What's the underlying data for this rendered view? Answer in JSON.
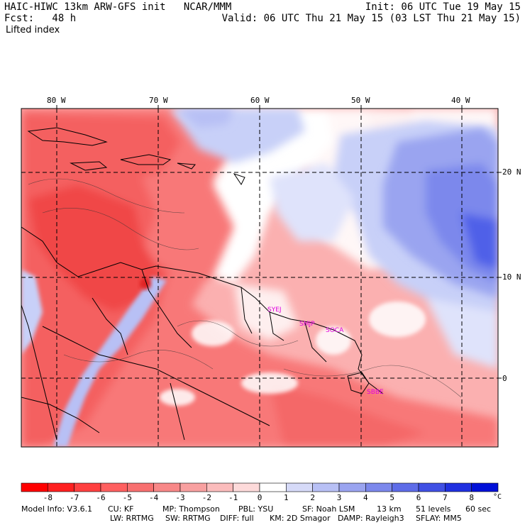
{
  "header": {
    "model_line": "HAIC-HIWC 13km ARW-GFS init   NCAR/MMM",
    "init_line": "Init: 06 UTC Tue 19 May 15",
    "fcst_line": "Fcst:   48 h",
    "valid_line": "Valid: 06 UTC Thu 21 May 15 (03 LST Thu 21 May 15)",
    "field_name": "Lifted index"
  },
  "map": {
    "lon_labels": [
      "80 W",
      "70 W",
      "60 W",
      "50 W",
      "40 W"
    ],
    "lat_labels": [
      "20 N",
      "10 N",
      "0"
    ],
    "stations": [
      "SYEJ",
      "SMJP",
      "SOCA",
      "SBBE"
    ],
    "colors": {
      "strong_negative": "#f04646",
      "negative": "#f87878",
      "weak_negative": "#fbb0b0",
      "neutral": "#ffffff",
      "weak_positive": "#c8d0f8",
      "positive": "#8c96f0",
      "strong_positive": "#5060e8",
      "station_label": "#e000e0"
    }
  },
  "colorbar": {
    "labels": [
      "-8",
      "-7",
      "-6",
      "-5",
      "-4",
      "-3",
      "-2",
      "-1",
      "0",
      "1",
      "2",
      "3",
      "4",
      "5",
      "6",
      "7",
      "8"
    ],
    "unit": "°C",
    "colors": [
      "#ff0000",
      "#ff2020",
      "#ff4040",
      "#ff6060",
      "#f87070",
      "#f88888",
      "#f8a0a0",
      "#fbbcbc",
      "#fddada",
      "#ffffff",
      "#d6daf8",
      "#b8c0f5",
      "#9aa4f0",
      "#7c88ec",
      "#5e6ce8",
      "#4050e4",
      "#2030e0",
      "#0010d8"
    ]
  },
  "footer": {
    "line1": [
      "Model Info: V3.6.1",
      "CU: KF",
      "MP: Thompson",
      "PBL: YSU",
      "SF: Noah LSM",
      "13 km",
      "51 levels",
      "60 sec"
    ],
    "line2": [
      "LW: RRTMG",
      "SW: RRTMG",
      "DIFF: full",
      "KM: 2D Smagor",
      "DAMP: Rayleigh3",
      "SFLAY: MM5"
    ]
  }
}
